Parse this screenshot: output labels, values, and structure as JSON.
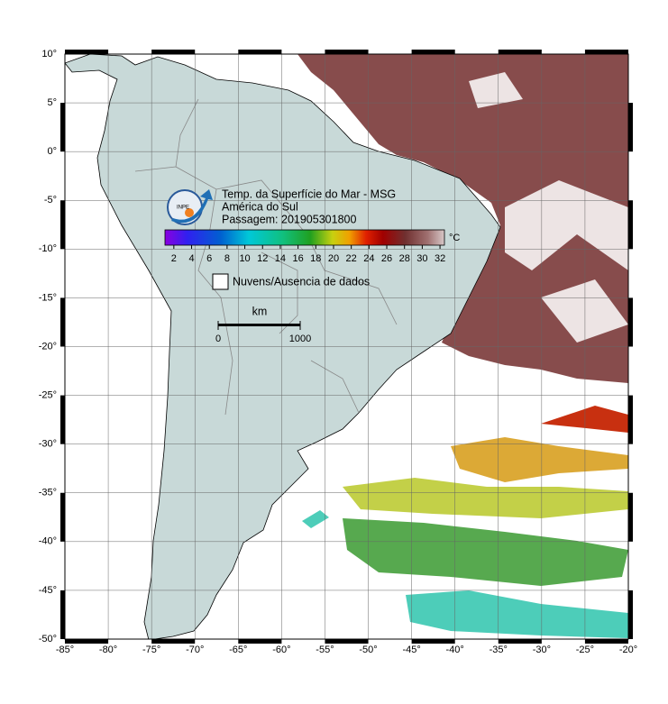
{
  "title_block": {
    "lines": [
      "Temp. da Superfície do Mar - MSG",
      "América do Sul",
      "Passagem: 201905301800"
    ],
    "logo_text": "INPE"
  },
  "colorbar": {
    "unit": "°C",
    "range": [
      1,
      32.5
    ],
    "ticks": [
      2,
      4,
      6,
      8,
      10,
      12,
      14,
      16,
      18,
      20,
      22,
      24,
      26,
      28,
      30,
      32
    ]
  },
  "legend": {
    "label": "Nuvens/Ausencia de dados"
  },
  "scale_bar": {
    "unit": "km",
    "ticks": [
      0,
      1000
    ]
  },
  "map": {
    "lon_ticks": [
      {
        "value": -85,
        "label": "-85°"
      },
      {
        "value": -80,
        "label": "-80°"
      },
      {
        "value": -75,
        "label": "-75°"
      },
      {
        "value": -70,
        "label": "-70°"
      },
      {
        "value": -65,
        "label": "-65°"
      },
      {
        "value": -60,
        "label": "-60°"
      },
      {
        "value": -55,
        "label": "-55°"
      },
      {
        "value": -50,
        "label": "-50°"
      },
      {
        "value": -45,
        "label": "-45°"
      },
      {
        "value": -40,
        "label": "-40°"
      },
      {
        "value": -35,
        "label": "-35°"
      },
      {
        "value": -30,
        "label": "-30°"
      },
      {
        "value": -25,
        "label": "-25°"
      },
      {
        "value": -20,
        "label": "-20°"
      }
    ],
    "lat_ticks": [
      {
        "value": 10,
        "label": "10°"
      },
      {
        "value": 5,
        "label": "5°"
      },
      {
        "value": 0,
        "label": "0°"
      },
      {
        "value": -5,
        "label": "-5°"
      },
      {
        "value": -10,
        "label": "-10°"
      },
      {
        "value": -15,
        "label": "-15°"
      },
      {
        "value": -20,
        "label": "-20°"
      },
      {
        "value": -25,
        "label": "-25°"
      },
      {
        "value": -30,
        "label": "-30°"
      },
      {
        "value": -35,
        "label": "-35°"
      },
      {
        "value": -40,
        "label": "-40°"
      },
      {
        "value": -45,
        "label": "-45°"
      },
      {
        "value": -50,
        "label": "-50°"
      }
    ]
  }
}
